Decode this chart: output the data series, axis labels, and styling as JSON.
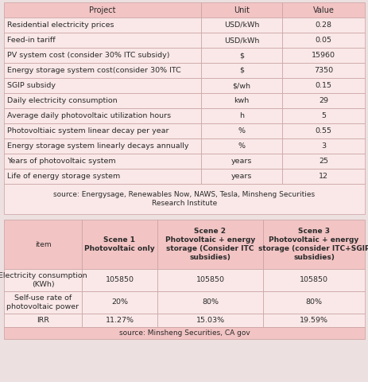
{
  "table1": {
    "headers": [
      "Project",
      "Unit",
      "Value"
    ],
    "rows": [
      [
        "Residential electricity prices",
        "USD/kWh",
        "0.28"
      ],
      [
        "Feed-in tariff",
        "USD/kWh",
        "0.05"
      ],
      [
        "PV system cost (consider 30% ITC subsidy)",
        "$",
        "15960"
      ],
      [
        "Energy storage system cost(consider 30% ITC",
        "$",
        "7350"
      ],
      [
        "SGIP subsidy",
        "$/wh",
        "0.15"
      ],
      [
        "Daily electricity consumption",
        "kwh",
        "29"
      ],
      [
        "Average daily photovoltaic utilization hours",
        "h",
        "5"
      ],
      [
        "Photovoltiaic system linear decay per year",
        "%",
        "0.55"
      ],
      [
        "Energy storage system linearly decays annually",
        "%",
        "3"
      ],
      [
        "Years of photovoltaic system",
        "years",
        "25"
      ],
      [
        "Life of energy storage system",
        "years",
        "12"
      ]
    ],
    "source": "source: Energysage, Renewables Now, NAWS, Tesla, Minsheng Securities\nResearch Institute",
    "header_bg": "#f2c4c4",
    "row_bg": "#fae8e8",
    "border_color": "#c8a0a0",
    "source_bg": "#fae8e8"
  },
  "table2": {
    "col_headers": [
      "item",
      "Scene 1\nPhotovoltaic only",
      "Scene 2\nPhotovoltaic + energy\nstorage (Consider ITC\nsubsidies)",
      "Scene 3\nPhotovoltaic + energy\nstorage (consider ITC+SGIP\nsubsidies)"
    ],
    "rows": [
      [
        "Electricity consumption\n(KWh)",
        "105850",
        "105850",
        "105850"
      ],
      [
        "Self-use rate of\nphotovoltaic power",
        "20%",
        "80%",
        "80%"
      ],
      [
        "IRR",
        "11.27%",
        "15.03%",
        "19.59%"
      ]
    ],
    "source": "source: Minsheng Securities, CA gov",
    "header_bg": "#f2c4c4",
    "row_bg": "#fae8e8",
    "border_color": "#c8a0a0"
  },
  "bg_color": "#ede0e0",
  "gap_color": "#ede0e0"
}
